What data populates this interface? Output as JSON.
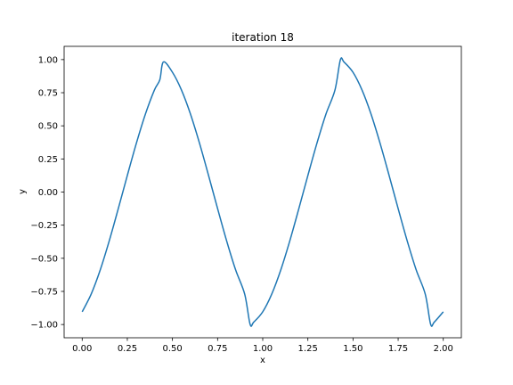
{
  "chart_data": {
    "type": "line",
    "title": "iteration 18",
    "xlabel": "x",
    "ylabel": "y",
    "xlim": [
      -0.1,
      2.1
    ],
    "ylim": [
      -1.1,
      1.1
    ],
    "xticks": [
      0.0,
      0.25,
      0.5,
      0.75,
      1.0,
      1.25,
      1.5,
      1.75,
      2.0
    ],
    "xtick_labels": [
      "0.00",
      "0.25",
      "0.50",
      "0.75",
      "1.00",
      "1.25",
      "1.50",
      "1.75",
      "2.00"
    ],
    "yticks": [
      -1.0,
      -0.75,
      -0.5,
      -0.25,
      0.0,
      0.25,
      0.5,
      0.75,
      1.0
    ],
    "ytick_labels": [
      "−1.00",
      "−0.75",
      "−0.50",
      "−0.25",
      "0.00",
      "0.25",
      "0.50",
      "0.75",
      "1.00"
    ],
    "grid": false,
    "legend": "none",
    "series": [
      {
        "color": "#1f77b4",
        "x": [
          0.0,
          0.05,
          0.1,
          0.15,
          0.2,
          0.25,
          0.3,
          0.35,
          0.4,
          0.43,
          0.45,
          0.5,
          0.55,
          0.6,
          0.65,
          0.7,
          0.75,
          0.8,
          0.85,
          0.9,
          0.93,
          0.95,
          1.0,
          1.05,
          1.1,
          1.15,
          1.2,
          1.25,
          1.3,
          1.35,
          1.4,
          1.43,
          1.45,
          1.5,
          1.55,
          1.6,
          1.65,
          1.7,
          1.75,
          1.8,
          1.85,
          1.9,
          1.93,
          1.95,
          2.0
        ],
        "y": [
          -0.904,
          -0.77,
          -0.588,
          -0.368,
          -0.125,
          0.125,
          0.368,
          0.588,
          0.77,
          0.848,
          0.982,
          0.904,
          0.77,
          0.588,
          0.368,
          0.125,
          -0.125,
          -0.368,
          -0.588,
          -0.77,
          -0.998,
          -0.982,
          -0.904,
          -0.77,
          -0.588,
          -0.368,
          -0.125,
          0.125,
          0.368,
          0.588,
          0.77,
          0.998,
          0.982,
          0.904,
          0.77,
          0.588,
          0.368,
          0.125,
          -0.125,
          -0.368,
          -0.588,
          -0.77,
          -0.998,
          -0.982,
          -0.904
        ]
      }
    ]
  }
}
